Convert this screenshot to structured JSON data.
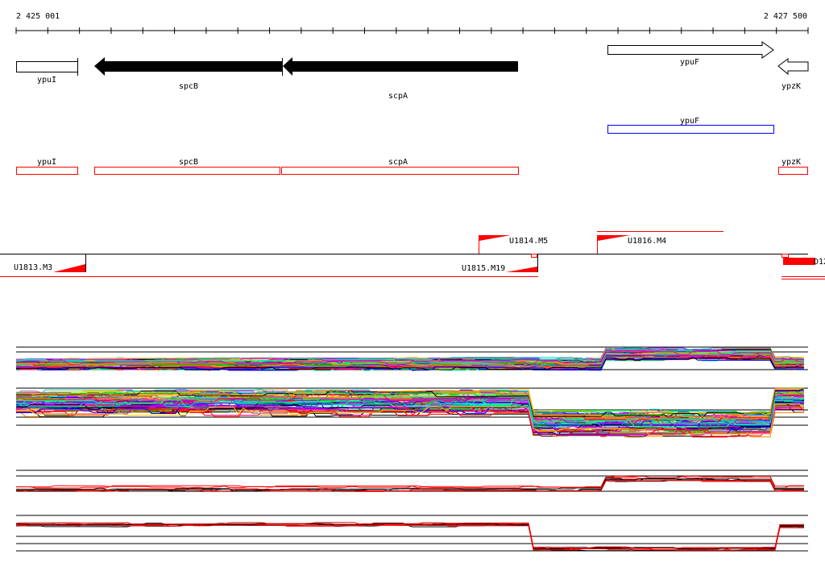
{
  "ruler": {
    "start_label": "2 425 001",
    "end_label": "2 427 500"
  },
  "genes": [
    {
      "name": "ypuI",
      "strand": "+",
      "filled": false
    },
    {
      "name": "spcB",
      "strand": "-",
      "filled": true
    },
    {
      "name": "scpA",
      "strand": "-",
      "filled": true
    },
    {
      "name": "ypuF",
      "strand": "+",
      "filled": false
    },
    {
      "name": "ypzK",
      "strand": "-",
      "filled": false
    }
  ],
  "annotation_blue": {
    "name": "ypuF",
    "color": "#0000ff"
  },
  "annotation_red": [
    {
      "name": "ypuI"
    },
    {
      "name": "spcB"
    },
    {
      "name": "scpA"
    },
    {
      "name": "ypzK"
    }
  ],
  "segments": [
    {
      "name": "U1813.M3"
    },
    {
      "name": "U1814.M5"
    },
    {
      "name": "U1815.M19"
    },
    {
      "name": "U1816.M4"
    },
    {
      "name": "D12"
    }
  ],
  "colors": {
    "accent": "#ff0000",
    "gene": "#000000",
    "blue": "#0000ff"
  }
}
